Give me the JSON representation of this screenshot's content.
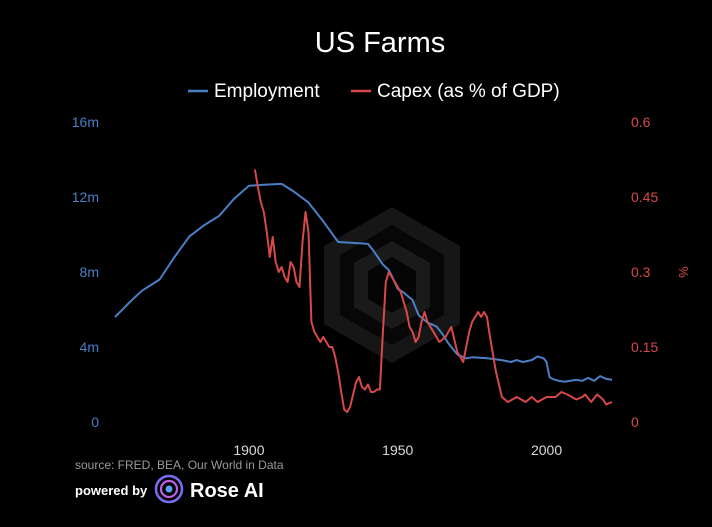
{
  "chart_data": {
    "type": "line",
    "title": "US Farms",
    "xlabel": "",
    "ylabel_left": "",
    "ylabel_right": "%",
    "xlim": [
      1855,
      2023
    ],
    "ylim_left": [
      0,
      16000000
    ],
    "ylim_right": [
      0,
      0.6
    ],
    "x_ticks": [
      1900,
      1950,
      2000
    ],
    "x_tick_labels": [
      "1900",
      "1950",
      "2000"
    ],
    "y_left_ticks": [
      0,
      4000000,
      8000000,
      12000000,
      16000000
    ],
    "y_left_tick_labels": [
      "0",
      "4m",
      "8m",
      "12m",
      "16m"
    ],
    "y_right_ticks": [
      0,
      0.15,
      0.3,
      0.45,
      0.6
    ],
    "y_right_tick_labels": [
      "0",
      "0.15",
      "0.3",
      "0.45",
      "0.6"
    ],
    "grid": false,
    "legend": {
      "position": "top"
    },
    "series": [
      {
        "name": "Employment",
        "axis": "left",
        "color": "#4a7fc4",
        "x": [
          1855,
          1860,
          1864,
          1870,
          1875,
          1880,
          1885,
          1890,
          1895,
          1900,
          1905,
          1911,
          1915,
          1920,
          1925,
          1930,
          1935,
          1940,
          1942,
          1945,
          1947,
          1948,
          1950,
          1952,
          1955,
          1957,
          1960,
          1963,
          1965,
          1967,
          1970,
          1973,
          1975,
          1980,
          1985,
          1988,
          1990,
          1992,
          1995,
          1997,
          1999,
          2000,
          2001,
          2002,
          2004,
          2006,
          2008,
          2010,
          2012,
          2014,
          2016,
          2018,
          2020,
          2022
        ],
        "y": [
          5600000,
          6400000,
          7000000,
          7600000,
          8800000,
          9900000,
          10500000,
          11000000,
          11900000,
          12600000,
          12650000,
          12700000,
          12300000,
          11700000,
          10700000,
          9600000,
          9550000,
          9500000,
          9100000,
          8400000,
          8100000,
          7800000,
          7100000,
          6900000,
          6500000,
          5700000,
          5300000,
          5100000,
          4700000,
          4200000,
          3600000,
          3400000,
          3450000,
          3400000,
          3300000,
          3200000,
          3300000,
          3200000,
          3300000,
          3500000,
          3400000,
          3200000,
          2400000,
          2300000,
          2200000,
          2150000,
          2200000,
          2250000,
          2200000,
          2350000,
          2200000,
          2450000,
          2300000,
          2250000
        ]
      },
      {
        "name": "Capex (as % of GDP)",
        "axis": "right",
        "color": "#d6494b",
        "x": [
          1902,
          1903,
          1904,
          1905,
          1906,
          1907,
          1908,
          1909,
          1910,
          1911,
          1912,
          1913,
          1914,
          1915,
          1916,
          1917,
          1918,
          1919,
          1920,
          1921,
          1922,
          1923,
          1924,
          1925,
          1926,
          1927,
          1928,
          1929,
          1930,
          1931,
          1932,
          1933,
          1934,
          1935,
          1936,
          1937,
          1938,
          1939,
          1940,
          1941,
          1942,
          1943,
          1944,
          1945,
          1946,
          1947,
          1948,
          1949,
          1950,
          1951,
          1952,
          1953,
          1954,
          1955,
          1956,
          1957,
          1958,
          1959,
          1960,
          1962,
          1964,
          1966,
          1968,
          1970,
          1972,
          1974,
          1975,
          1976,
          1977,
          1978,
          1979,
          1980,
          1981,
          1983,
          1985,
          1987,
          1990,
          1993,
          1995,
          1997,
          2000,
          2003,
          2005,
          2007,
          2010,
          2012,
          2013,
          2015,
          2017,
          2019,
          2020,
          2022
        ],
        "y": [
          0.505,
          0.47,
          0.44,
          0.42,
          0.38,
          0.33,
          0.37,
          0.32,
          0.3,
          0.31,
          0.29,
          0.28,
          0.32,
          0.31,
          0.28,
          0.27,
          0.36,
          0.42,
          0.38,
          0.2,
          0.18,
          0.17,
          0.16,
          0.17,
          0.16,
          0.15,
          0.15,
          0.13,
          0.1,
          0.06,
          0.025,
          0.02,
          0.03,
          0.055,
          0.08,
          0.09,
          0.07,
          0.065,
          0.075,
          0.06,
          0.06,
          0.065,
          0.065,
          0.18,
          0.28,
          0.3,
          0.29,
          0.28,
          0.27,
          0.26,
          0.24,
          0.22,
          0.19,
          0.18,
          0.16,
          0.17,
          0.2,
          0.22,
          0.2,
          0.18,
          0.16,
          0.17,
          0.19,
          0.14,
          0.12,
          0.18,
          0.2,
          0.21,
          0.22,
          0.21,
          0.22,
          0.21,
          0.17,
          0.1,
          0.05,
          0.04,
          0.05,
          0.04,
          0.05,
          0.04,
          0.05,
          0.05,
          0.06,
          0.055,
          0.045,
          0.05,
          0.055,
          0.04,
          0.055,
          0.045,
          0.035,
          0.04
        ]
      }
    ]
  },
  "footer": {
    "source": "source: FRED, BEA, Our World in Data",
    "powered_by": "powered by",
    "brand": "Rose AI"
  }
}
